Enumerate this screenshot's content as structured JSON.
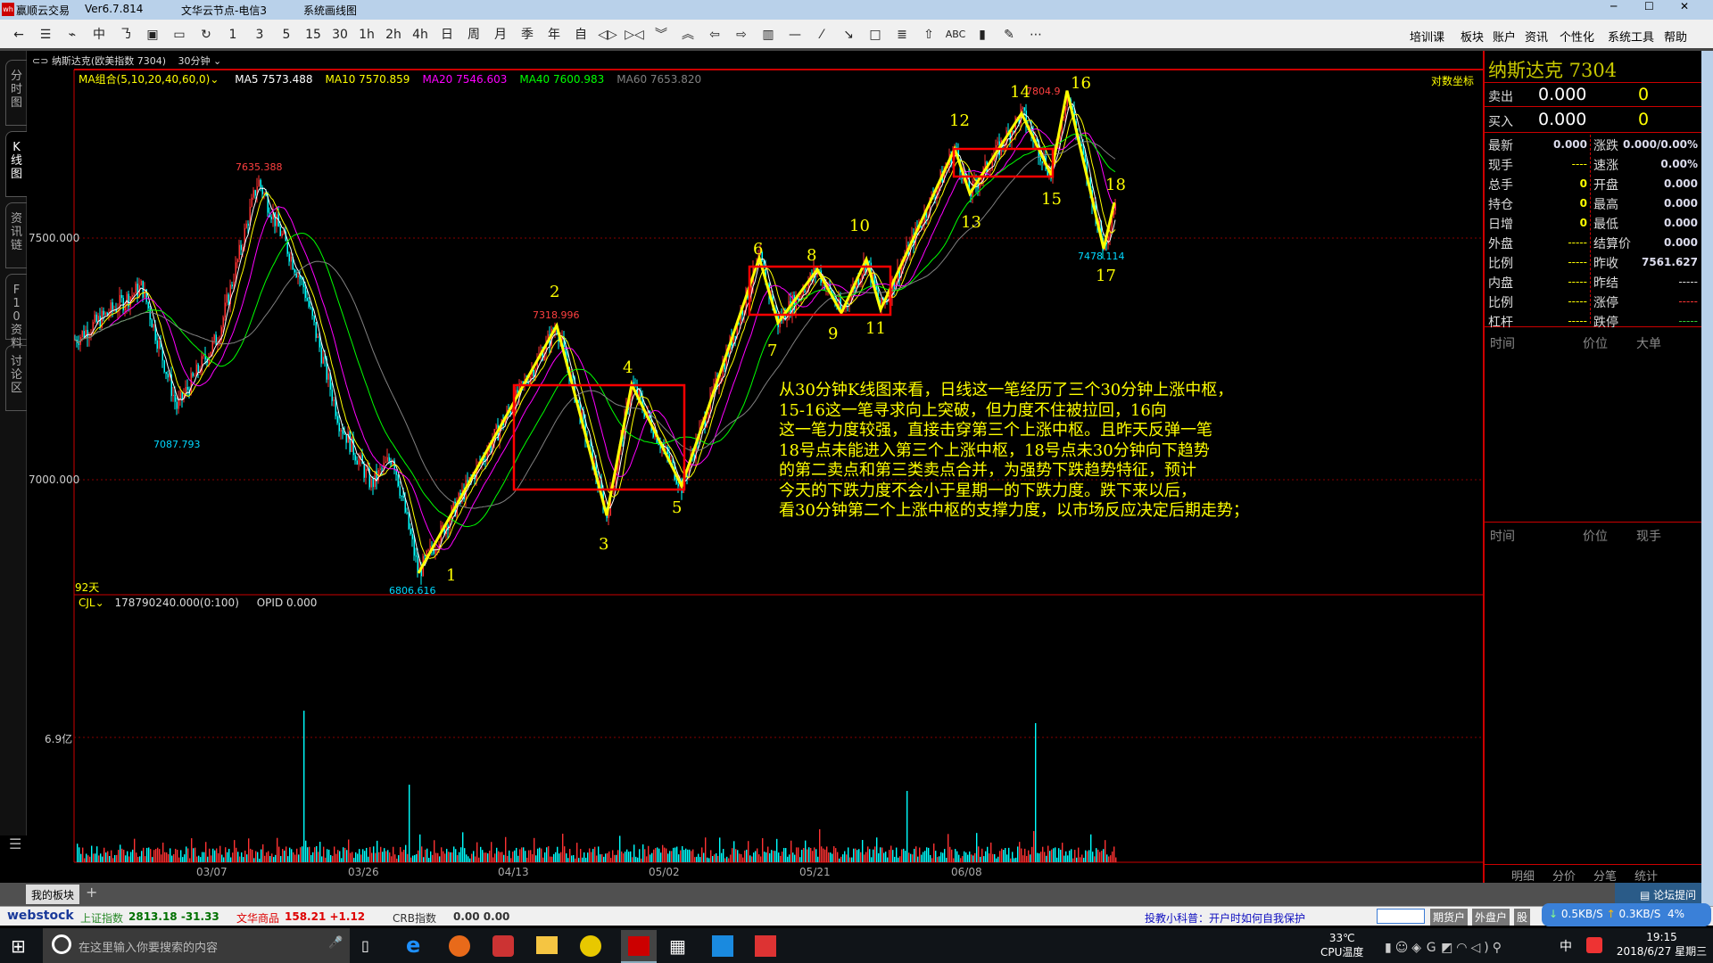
{
  "window": {
    "app": "赢顺云交易",
    "version": "Ver6.7.814",
    "node": "文华云节点-电信3",
    "mode": "系统画线图"
  },
  "toolbar": {
    "items": [
      {
        "icon": "back-arrow-icon",
        "glyph": "←"
      },
      {
        "icon": "list-icon",
        "glyph": "☰"
      },
      {
        "icon": "line-chart-icon",
        "glyph": "⌁"
      },
      {
        "icon": "candle-icon",
        "glyph": "中"
      },
      {
        "icon": "order-icon",
        "glyph": "㇡"
      },
      {
        "icon": "form-icon",
        "glyph": "▣"
      },
      {
        "icon": "save-icon",
        "glyph": "▭"
      },
      {
        "icon": "refresh-icon",
        "glyph": "↻"
      },
      {
        "glyph": "1"
      },
      {
        "glyph": "3"
      },
      {
        "glyph": "5"
      },
      {
        "glyph": "15"
      },
      {
        "glyph": "30"
      },
      {
        "glyph": "1h"
      },
      {
        "glyph": "2h"
      },
      {
        "glyph": "4h"
      },
      {
        "glyph": "日"
      },
      {
        "glyph": "周"
      },
      {
        "glyph": "月"
      },
      {
        "glyph": "季"
      },
      {
        "glyph": "年"
      },
      {
        "glyph": "自"
      },
      {
        "icon": "expand-icon",
        "glyph": "◁▷"
      },
      {
        "icon": "shrink-icon",
        "glyph": "▷◁"
      },
      {
        "icon": "double-down-icon",
        "glyph": "︾"
      },
      {
        "icon": "double-up-icon",
        "glyph": "︽"
      },
      {
        "icon": "left-arrow-icon",
        "glyph": "⇦"
      },
      {
        "icon": "right-arrow-icon",
        "glyph": "⇨"
      },
      {
        "icon": "layout-icon",
        "glyph": "▥"
      },
      {
        "icon": "hline-icon",
        "glyph": "—"
      },
      {
        "icon": "segment-icon",
        "glyph": "⁄"
      },
      {
        "icon": "ray-icon",
        "glyph": "↘"
      },
      {
        "icon": "rectangle-icon",
        "glyph": "□"
      },
      {
        "icon": "text-block-icon",
        "glyph": "≣"
      },
      {
        "icon": "up-arrow-icon",
        "glyph": "⇧"
      },
      {
        "icon": "text-icon",
        "glyph": "ABC"
      },
      {
        "icon": "gradient-icon",
        "glyph": "▮"
      },
      {
        "icon": "eraser-icon",
        "glyph": "✎"
      },
      {
        "icon": "more-icon",
        "glyph": "⋯"
      }
    ],
    "menus": [
      "培训课",
      "板块",
      "账户",
      "资讯",
      "个性化",
      "系统工具",
      "帮助"
    ]
  },
  "chart": {
    "instrument": "纳斯达克(欧美指数 7304)",
    "period": "30分钟",
    "ma_combo": "MA组合(5,10,20,40,60,0)",
    "ma": [
      {
        "label": "MA5 7573.488",
        "color": "#ffffff"
      },
      {
        "label": "MA10 7570.859",
        "color": "#ffff00"
      },
      {
        "label": "MA20 7546.603",
        "color": "#ff00ff"
      },
      {
        "label": "MA40 7600.983",
        "color": "#00ff00"
      },
      {
        "label": "MA60 7653.820",
        "color": "#808080"
      }
    ],
    "log_scale": "对数坐标",
    "y_ticks": [
      "7500.000",
      "7000.000"
    ],
    "days": "92天",
    "price_labels": {
      "high1": "7635.388",
      "low1": "7087.793",
      "low_1": "6806.616",
      "high_2": "7318.996",
      "high_16": "7804.9",
      "low_17": "7478.114"
    },
    "pivots": [
      {
        "label": "1",
        "price": 6806.6
      },
      {
        "label": "2",
        "price": 7319.0
      },
      {
        "label": "3",
        "price": 6926
      },
      {
        "label": "4",
        "price": 7197
      },
      {
        "label": "5",
        "price": 6987
      },
      {
        "label": "6",
        "price": 7459
      },
      {
        "label": "7",
        "price": 7325
      },
      {
        "label": "8",
        "price": 7435
      },
      {
        "label": "9",
        "price": 7345
      },
      {
        "label": "10",
        "price": 7456
      },
      {
        "label": "11",
        "price": 7352
      },
      {
        "label": "12",
        "price": 7685
      },
      {
        "label": "13",
        "price": 7592
      },
      {
        "label": "14",
        "price": 7758
      },
      {
        "label": "15",
        "price": 7631
      },
      {
        "label": "16",
        "price": 7804.9
      },
      {
        "label": "17",
        "price": 7478.1
      },
      {
        "label": "18",
        "price": 7574
      }
    ],
    "commentary": [
      "从30分钟K线图来看，日线这一笔经历了三个30分钟上涨中枢，",
      "15-16这一笔寻求向上突破，但力度不住被拉回，16向",
      "这一笔力度较强，直接击穿第三个上涨中枢。且昨天反弹一笔",
      "18号点未能进入第三个上涨中枢，18号点未30分钟向下趋势",
      "的第二卖点和第三类卖点合并，为强势下跌趋势特征，预计",
      "今天的下跌力度不会小于星期一的下跌力度。跌下来以后，",
      "看30分钟第二个上涨中枢的支撑力度，以市场反应决定后期走势；"
    ],
    "volume": {
      "label": "CJL",
      "value": "178790240.000(0:100)",
      "opid": "OPID 0.000",
      "tick": "6.9亿"
    },
    "dates": [
      "03/07",
      "03/26",
      "04/13",
      "05/02",
      "05/21",
      "06/08"
    ],
    "colors": {
      "up": "#ff3232",
      "down": "#00ffff",
      "zigzag": "#ffff00",
      "box": "#ff0000"
    }
  },
  "sidebar": {
    "tabs": [
      "分时图",
      "K线图",
      "资讯链",
      "F10资料",
      "讨论区"
    ]
  },
  "quote": {
    "title": "纳斯达克 7304",
    "sell": {
      "label": "卖出",
      "price": "0.000",
      "vol": "0"
    },
    "buy": {
      "label": "买入",
      "price": "0.000",
      "vol": "0"
    },
    "left": [
      {
        "k": "最新",
        "v": "0.000"
      },
      {
        "k": "现手",
        "v": "----"
      },
      {
        "k": "总手",
        "v": "0"
      },
      {
        "k": "持仓",
        "v": "0"
      },
      {
        "k": "日增",
        "v": "0"
      },
      {
        "k": "外盘",
        "v": "-----"
      },
      {
        "k": "比例",
        "v": "-----"
      },
      {
        "k": "内盘",
        "v": "-----"
      },
      {
        "k": "比例",
        "v": "-----"
      },
      {
        "k": "杠杆",
        "v": "-----"
      }
    ],
    "right": [
      {
        "k": "涨跌",
        "v": "0.000/0.00%"
      },
      {
        "k": "速涨",
        "v": "0.00%"
      },
      {
        "k": "开盘",
        "v": "0.000"
      },
      {
        "k": "最高",
        "v": "0.000"
      },
      {
        "k": "最低",
        "v": "0.000"
      },
      {
        "k": "结算价",
        "v": "0.000"
      },
      {
        "k": "昨收",
        "v": "7561.627"
      },
      {
        "k": "昨结",
        "v": "-----"
      },
      {
        "k": "涨停",
        "v": "-----"
      },
      {
        "k": "跌停",
        "v": "-----"
      }
    ],
    "ticks_header": [
      "时间",
      "价位",
      "大单"
    ],
    "detail_header": [
      "时间",
      "价位",
      "现手"
    ],
    "tabs": [
      "明细",
      "分价",
      "分笔",
      "统计"
    ]
  },
  "bottom": {
    "tab": "我的板块",
    "add": "+",
    "forum": "论坛提问"
  },
  "status": {
    "logo": "webstock",
    "sh_label": "上证指数",
    "sh_value": "2813.18 -31.33",
    "wh_label": "文华商品",
    "wh_value": "158.21 +1.12",
    "crb_label": "CRB指数",
    "crb_value": "0.00 0.00",
    "tip": "投教小科普：开户时如何自我保护",
    "btn_futures": "期货户",
    "btn_foreign": "外盘户",
    "btn_stock": "股",
    "net_down": "0.5KB/S",
    "net_up": "0.3KB/S",
    "cpu": "4%"
  },
  "taskbar": {
    "search": "在这里输入你要搜索的内容",
    "temp": "33℃",
    "temp_label": "CPU温度",
    "ime": "中",
    "time": "19:15",
    "date": "2018/6/27 星期三"
  }
}
